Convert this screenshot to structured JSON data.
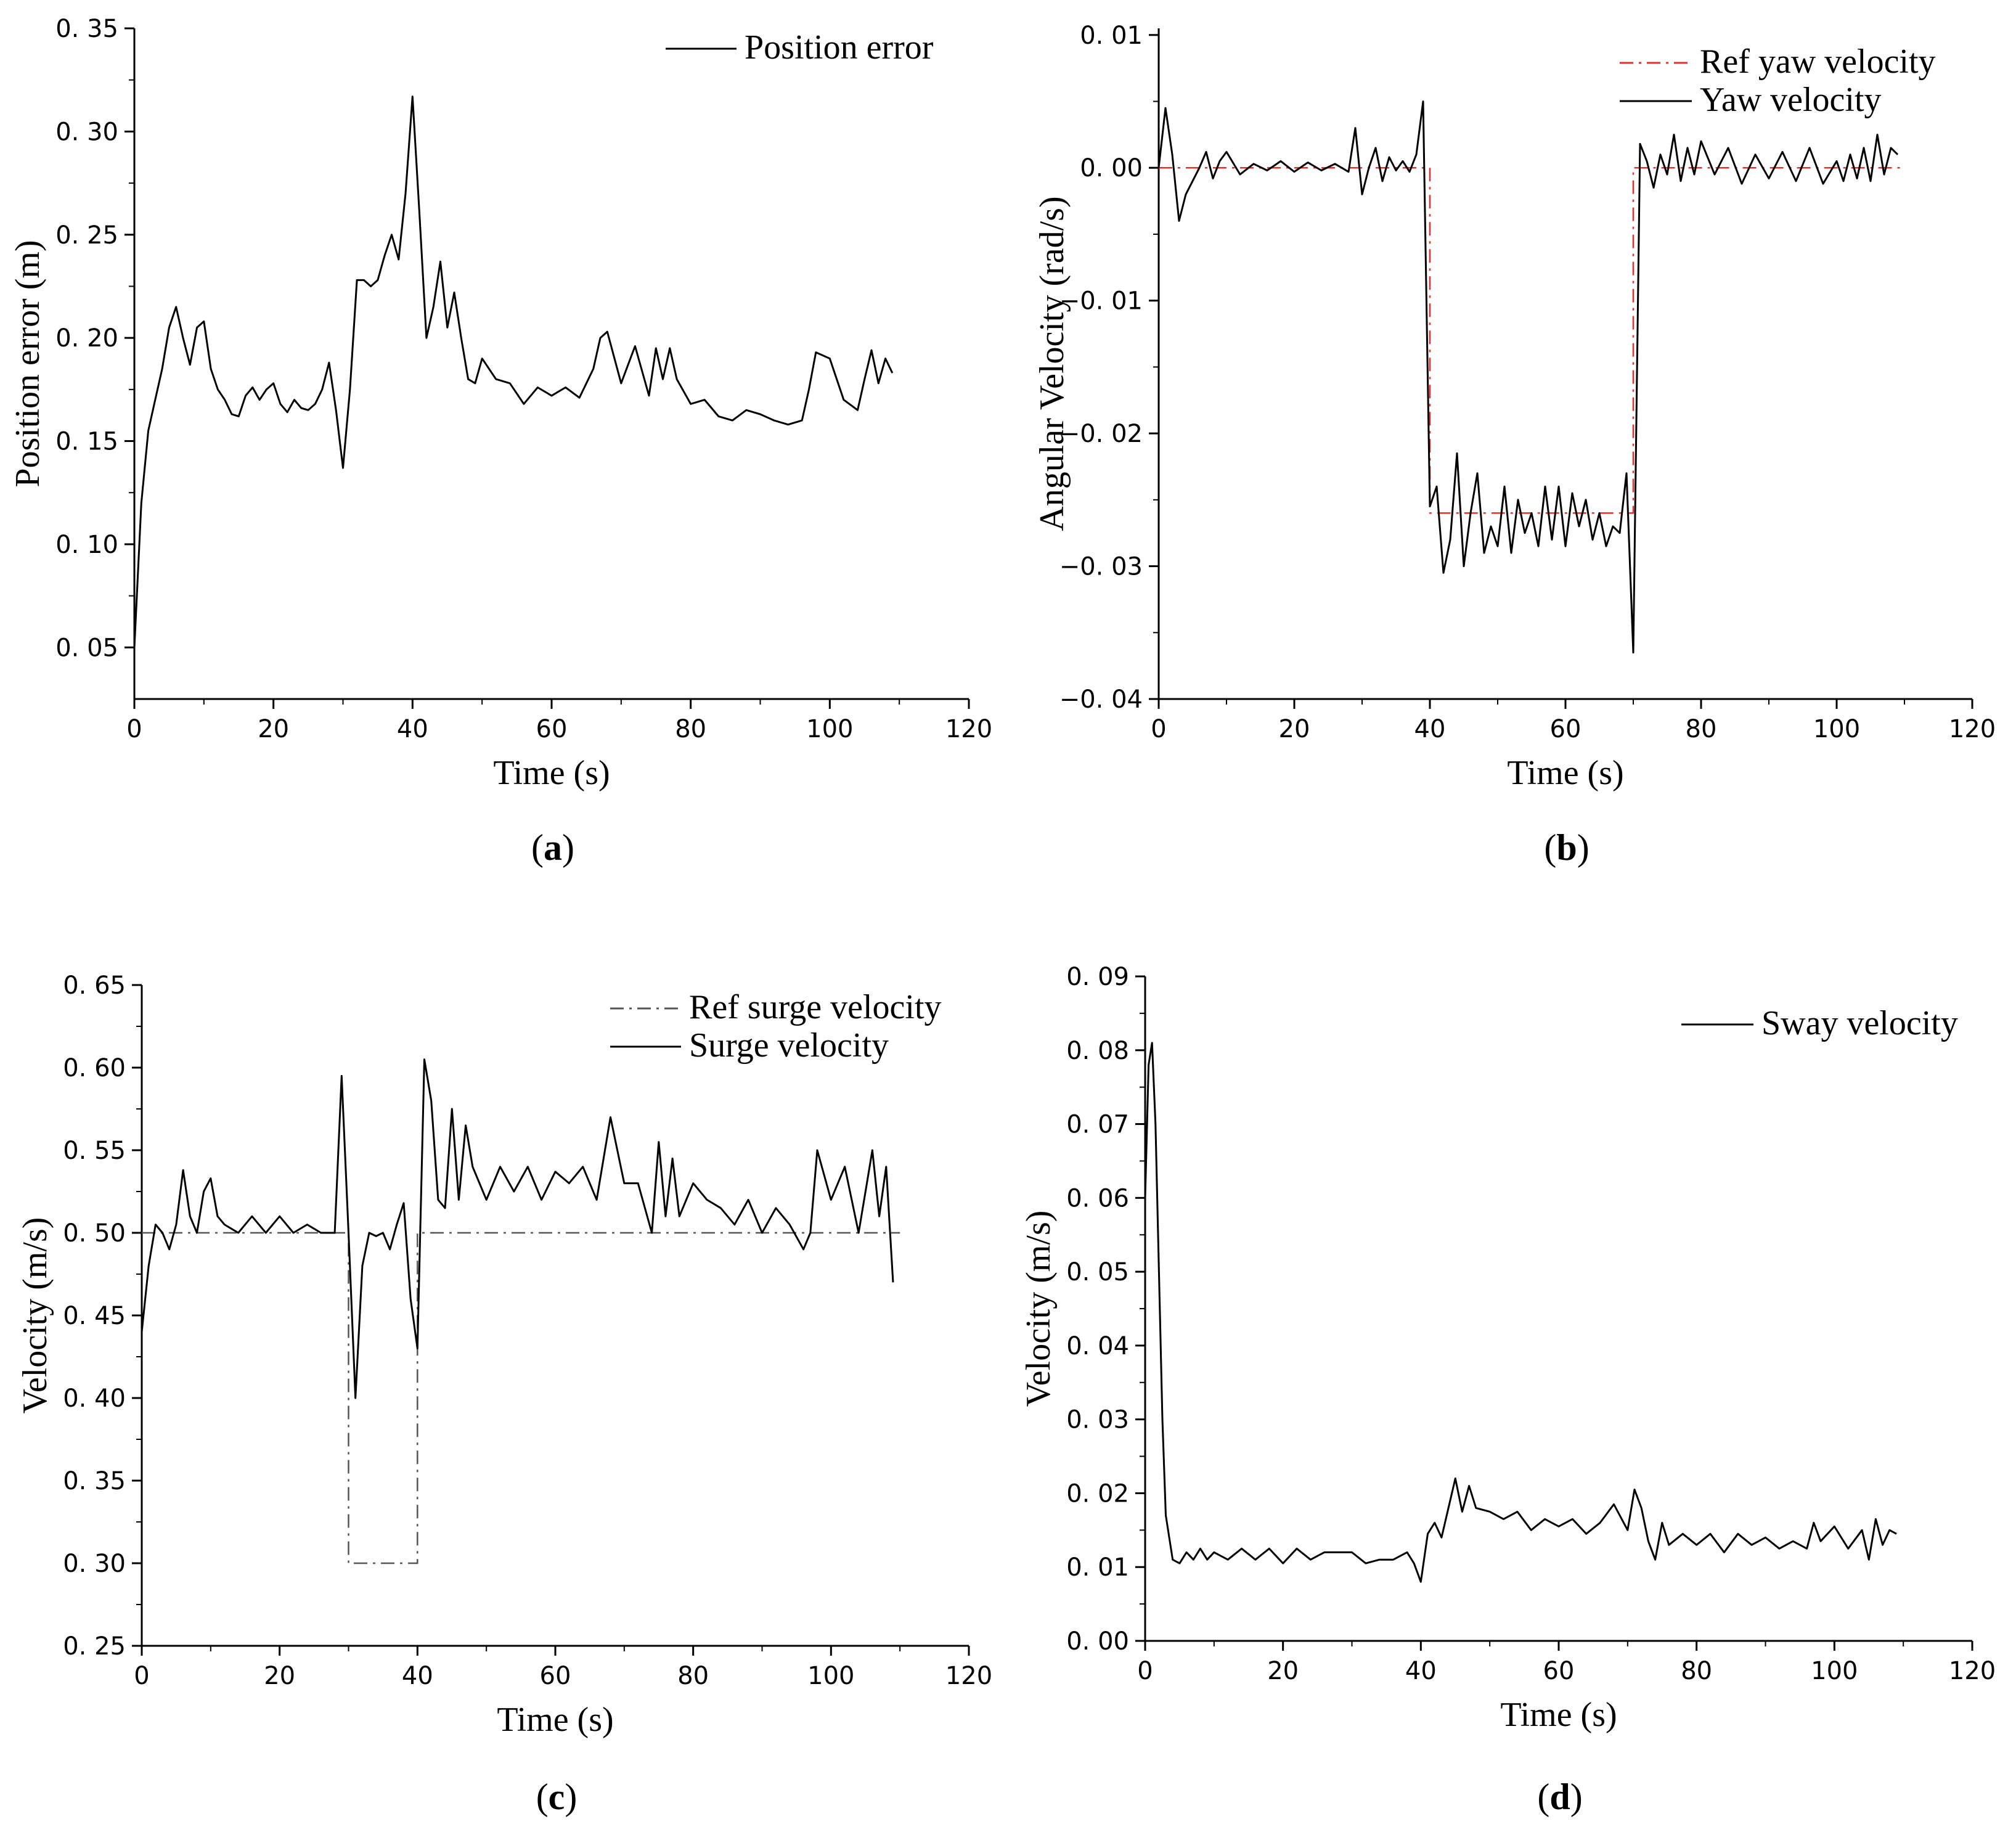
{
  "chart_data": [
    {
      "type": "line",
      "panel_label": "a",
      "xlabel": "Time (s)",
      "ylabel": "Position error (m)",
      "xlim": [
        0,
        120
      ],
      "ylim": [
        0.025,
        0.35
      ],
      "xticks": [
        0,
        20,
        40,
        60,
        80,
        100,
        120
      ],
      "yticks": [
        0.05,
        0.1,
        0.15,
        0.2,
        0.25,
        0.3,
        0.35
      ],
      "ytick_labels": [
        "0. 05",
        "0. 10",
        "0. 15",
        "0. 20",
        "0. 25",
        "0. 30",
        "0. 35"
      ],
      "legend_position": "top-right",
      "series": [
        {
          "name": "Position error",
          "color": "#000000",
          "dash": "solid",
          "x": [
            0,
            1,
            2,
            3,
            4,
            5,
            6,
            7,
            8,
            9,
            10,
            11,
            12,
            13,
            14,
            15,
            16,
            17,
            18,
            19,
            20,
            21,
            22,
            23,
            24,
            25,
            26,
            27,
            28,
            29,
            30,
            31,
            32,
            33,
            34,
            35,
            36,
            37,
            38,
            39,
            40,
            41,
            42,
            43,
            44,
            45,
            46,
            47,
            48,
            49,
            50,
            52,
            54,
            56,
            58,
            60,
            62,
            64,
            66,
            67,
            68,
            70,
            72,
            74,
            75,
            76,
            77,
            78,
            80,
            82,
            84,
            86,
            88,
            90,
            92,
            94,
            96,
            97,
            98,
            100,
            102,
            104,
            105,
            106,
            107,
            108,
            109
          ],
          "y": [
            0.05,
            0.12,
            0.155,
            0.17,
            0.185,
            0.205,
            0.215,
            0.2,
            0.187,
            0.205,
            0.208,
            0.185,
            0.175,
            0.17,
            0.163,
            0.162,
            0.172,
            0.176,
            0.17,
            0.175,
            0.178,
            0.168,
            0.164,
            0.17,
            0.166,
            0.165,
            0.168,
            0.175,
            0.188,
            0.165,
            0.137,
            0.175,
            0.228,
            0.228,
            0.225,
            0.228,
            0.24,
            0.25,
            0.238,
            0.27,
            0.317,
            0.26,
            0.2,
            0.215,
            0.237,
            0.205,
            0.222,
            0.2,
            0.18,
            0.178,
            0.19,
            0.18,
            0.178,
            0.168,
            0.176,
            0.172,
            0.176,
            0.171,
            0.185,
            0.2,
            0.203,
            0.178,
            0.196,
            0.172,
            0.195,
            0.18,
            0.195,
            0.18,
            0.168,
            0.17,
            0.162,
            0.16,
            0.165,
            0.163,
            0.16,
            0.158,
            0.16,
            0.175,
            0.193,
            0.19,
            0.17,
            0.165,
            0.18,
            0.194,
            0.178,
            0.19,
            0.183
          ]
        }
      ]
    },
    {
      "type": "line",
      "panel_label": "b",
      "xlabel": "Time (s)",
      "ylabel": "Angular Velocity (rad/s)",
      "xlim": [
        0,
        120
      ],
      "ylim": [
        -0.04,
        0.0105
      ],
      "xticks": [
        0,
        20,
        40,
        60,
        80,
        100,
        120
      ],
      "yticks": [
        -0.04,
        -0.03,
        -0.02,
        -0.01,
        0.0,
        0.01
      ],
      "ytick_labels": [
        "−0. 04",
        "−0. 03",
        "−0. 02",
        "−0. 01",
        "0. 00",
        "0. 01"
      ],
      "legend_position": "top-right",
      "series": [
        {
          "name": "Ref yaw velocity",
          "color": "#e03030",
          "dash": "dashdot",
          "x": [
            0,
            40,
            40,
            70,
            70,
            110
          ],
          "y": [
            0,
            0,
            -0.026,
            -0.026,
            0,
            0
          ]
        },
        {
          "name": "Yaw velocity",
          "color": "#000000",
          "dash": "solid",
          "x": [
            0,
            1,
            2,
            3,
            4,
            5,
            6,
            7,
            8,
            9,
            10,
            12,
            14,
            16,
            18,
            20,
            22,
            24,
            26,
            28,
            29,
            30,
            31,
            32,
            33,
            34,
            35,
            36,
            37,
            38,
            39,
            40,
            41,
            42,
            43,
            44,
            45,
            46,
            47,
            48,
            49,
            50,
            51,
            52,
            53,
            54,
            55,
            56,
            57,
            58,
            59,
            60,
            61,
            62,
            63,
            64,
            65,
            66,
            67,
            68,
            69,
            70,
            71,
            72,
            73,
            74,
            75,
            76,
            77,
            78,
            79,
            80,
            82,
            84,
            86,
            88,
            90,
            92,
            94,
            96,
            98,
            100,
            101,
            102,
            103,
            104,
            105,
            106,
            107,
            108,
            109
          ],
          "y": [
            0,
            0.0045,
            0.001,
            -0.004,
            -0.002,
            -0.001,
            0,
            0.0012,
            -0.0008,
            0.0005,
            0.0012,
            -0.0005,
            0.0003,
            -0.0002,
            0.0005,
            -0.0003,
            0.0004,
            -0.0002,
            0.0003,
            -0.0003,
            0.003,
            -0.002,
            0,
            0.0015,
            -0.001,
            0.0008,
            -0.0002,
            0.0005,
            -0.0003,
            0.001,
            0.005,
            -0.0255,
            -0.024,
            -0.0305,
            -0.028,
            -0.0215,
            -0.03,
            -0.026,
            -0.023,
            -0.029,
            -0.027,
            -0.0285,
            -0.024,
            -0.029,
            -0.025,
            -0.0275,
            -0.026,
            -0.0285,
            -0.024,
            -0.028,
            -0.024,
            -0.0285,
            -0.0245,
            -0.027,
            -0.025,
            -0.028,
            -0.026,
            -0.0285,
            -0.027,
            -0.0275,
            -0.023,
            -0.0365,
            0.0018,
            0.0005,
            -0.0015,
            0.001,
            -0.0005,
            0.0025,
            -0.001,
            0.0015,
            -0.0005,
            0.002,
            -0.0005,
            0.0015,
            -0.0012,
            0.001,
            -0.0008,
            0.0012,
            -0.001,
            0.0015,
            -0.0012,
            0.0005,
            -0.001,
            0.001,
            -0.0008,
            0.0015,
            -0.001,
            0.0025,
            -0.0005,
            0.0015,
            0.001
          ]
        }
      ]
    },
    {
      "type": "line",
      "panel_label": "c",
      "xlabel": "Time (s)",
      "ylabel": "Velocity (m/s)",
      "xlim": [
        0,
        120
      ],
      "ylim": [
        0.25,
        0.65
      ],
      "xticks": [
        0,
        20,
        40,
        60,
        80,
        100,
        120
      ],
      "yticks": [
        0.25,
        0.3,
        0.35,
        0.4,
        0.45,
        0.5,
        0.55,
        0.6,
        0.65
      ],
      "ytick_labels": [
        "0. 25",
        "0. 30",
        "0. 35",
        "0. 40",
        "0. 45",
        "0. 50",
        "0. 55",
        "0. 60",
        "0. 65"
      ],
      "legend_position": "top-right",
      "series": [
        {
          "name": "Ref surge velocity",
          "color": "#555555",
          "dash": "dashdot",
          "x": [
            0,
            30,
            30,
            40,
            40,
            110
          ],
          "y": [
            0.5,
            0.5,
            0.3,
            0.3,
            0.5,
            0.5
          ]
        },
        {
          "name": "Surge velocity",
          "color": "#000000",
          "dash": "solid",
          "x": [
            0,
            1,
            2,
            3,
            4,
            5,
            6,
            7,
            8,
            9,
            10,
            11,
            12,
            14,
            16,
            18,
            20,
            22,
            24,
            26,
            28,
            29,
            30,
            31,
            32,
            33,
            34,
            35,
            36,
            37,
            38,
            39,
            40,
            41,
            42,
            43,
            44,
            45,
            46,
            47,
            48,
            50,
            52,
            54,
            56,
            58,
            60,
            62,
            64,
            66,
            68,
            70,
            72,
            74,
            75,
            76,
            77,
            78,
            80,
            82,
            84,
            86,
            88,
            90,
            92,
            94,
            96,
            97,
            98,
            100,
            102,
            104,
            105,
            106,
            107,
            108,
            109
          ],
          "y": [
            0.44,
            0.48,
            0.505,
            0.5,
            0.49,
            0.505,
            0.538,
            0.51,
            0.5,
            0.525,
            0.533,
            0.51,
            0.505,
            0.5,
            0.51,
            0.5,
            0.51,
            0.5,
            0.505,
            0.5,
            0.5,
            0.595,
            0.5,
            0.4,
            0.48,
            0.5,
            0.498,
            0.5,
            0.49,
            0.505,
            0.518,
            0.46,
            0.43,
            0.605,
            0.58,
            0.52,
            0.515,
            0.575,
            0.52,
            0.565,
            0.54,
            0.52,
            0.54,
            0.525,
            0.54,
            0.52,
            0.537,
            0.53,
            0.54,
            0.52,
            0.57,
            0.53,
            0.53,
            0.5,
            0.555,
            0.51,
            0.545,
            0.51,
            0.53,
            0.52,
            0.515,
            0.505,
            0.52,
            0.5,
            0.515,
            0.505,
            0.49,
            0.5,
            0.55,
            0.52,
            0.54,
            0.5,
            0.525,
            0.55,
            0.51,
            0.54,
            0.47
          ]
        }
      ]
    },
    {
      "type": "line",
      "panel_label": "d",
      "xlabel": "Time (s)",
      "ylabel": "Velocity (m/s)",
      "xlim": [
        0,
        120
      ],
      "ylim": [
        0.0,
        0.09
      ],
      "xticks": [
        0,
        20,
        40,
        60,
        80,
        100,
        120
      ],
      "yticks": [
        0.0,
        0.01,
        0.02,
        0.03,
        0.04,
        0.05,
        0.06,
        0.07,
        0.08,
        0.09
      ],
      "ytick_labels": [
        "0. 00",
        "0. 01",
        "0. 02",
        "0. 03",
        "0. 04",
        "0. 05",
        "0. 06",
        "0. 07",
        "0. 08",
        "0. 09"
      ],
      "legend_position": "top-right",
      "series": [
        {
          "name": "Sway velocity",
          "color": "#000000",
          "dash": "solid",
          "x": [
            0,
            0.5,
            1,
            1.5,
            2,
            2.5,
            3,
            4,
            5,
            6,
            7,
            8,
            9,
            10,
            12,
            14,
            16,
            18,
            20,
            22,
            24,
            26,
            28,
            30,
            32,
            34,
            36,
            38,
            39,
            40,
            41,
            42,
            43,
            44,
            45,
            46,
            47,
            48,
            50,
            52,
            54,
            56,
            58,
            60,
            62,
            64,
            66,
            68,
            70,
            71,
            72,
            73,
            74,
            75,
            76,
            78,
            80,
            82,
            84,
            86,
            88,
            90,
            92,
            94,
            96,
            97,
            98,
            100,
            102,
            104,
            105,
            106,
            107,
            108,
            109
          ],
          "y": [
            0.06,
            0.078,
            0.081,
            0.07,
            0.05,
            0.03,
            0.017,
            0.011,
            0.0105,
            0.012,
            0.011,
            0.0125,
            0.011,
            0.012,
            0.011,
            0.0125,
            0.011,
            0.0125,
            0.0105,
            0.0125,
            0.011,
            0.012,
            0.012,
            0.012,
            0.0105,
            0.011,
            0.011,
            0.012,
            0.0105,
            0.008,
            0.0145,
            0.016,
            0.014,
            0.018,
            0.022,
            0.0175,
            0.021,
            0.018,
            0.0175,
            0.0165,
            0.0175,
            0.015,
            0.0165,
            0.0155,
            0.0165,
            0.0145,
            0.016,
            0.0185,
            0.015,
            0.0205,
            0.018,
            0.0135,
            0.011,
            0.016,
            0.013,
            0.0145,
            0.013,
            0.0145,
            0.012,
            0.0145,
            0.013,
            0.014,
            0.0125,
            0.0135,
            0.0125,
            0.016,
            0.0135,
            0.0155,
            0.0125,
            0.015,
            0.011,
            0.0165,
            0.013,
            0.015,
            0.0145
          ]
        }
      ]
    }
  ]
}
